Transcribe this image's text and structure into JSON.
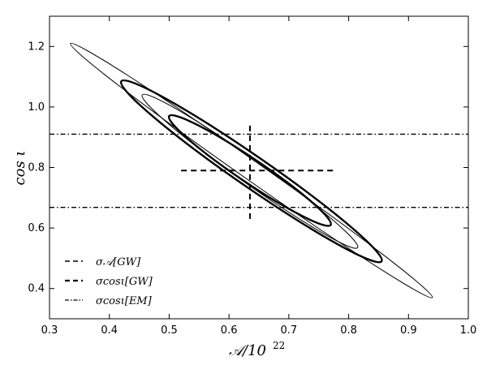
{
  "chart_data": {
    "type": "contour",
    "xlabel": "𝒜/10",
    "xlabel_exp": "22",
    "ylabel": "cos ι",
    "xlim": [
      0.3,
      1.0
    ],
    "ylim": [
      0.3,
      1.3
    ],
    "x_ticks": [
      "0.3",
      "0.4",
      "0.5",
      "0.6",
      "0.7",
      "0.8",
      "0.9",
      "1.0"
    ],
    "y_ticks": [
      "0.4",
      "0.6",
      "0.8",
      "1.0",
      "1.2"
    ],
    "center": [
      0.635,
      0.79
    ],
    "ellipses": [
      {
        "style": "thin",
        "tip_a": [
          0.335,
          1.21
        ],
        "tip_b": [
          0.94,
          0.37
        ],
        "half_width": 0.016
      },
      {
        "style": "thick",
        "tip_a": [
          0.42,
          1.085
        ],
        "tip_b": [
          0.855,
          0.49
        ],
        "half_width": 0.026
      },
      {
        "style": "thin",
        "tip_a": [
          0.455,
          1.04
        ],
        "tip_b": [
          0.815,
          0.535
        ],
        "half_width": 0.02
      },
      {
        "style": "thick",
        "tip_a": [
          0.5,
          0.97
        ],
        "tip_b": [
          0.77,
          0.61
        ],
        "half_width": 0.02
      }
    ],
    "sigma_A_gw": {
      "center": 0.635,
      "range": [
        0.52,
        0.775
      ]
    },
    "sigma_cos_gw": {
      "center": 0.79,
      "range": [
        0.63,
        0.95
      ]
    },
    "sigma_cos_em": [
      0.91,
      0.668
    ],
    "legend": {
      "position": "lower-left",
      "entries": [
        {
          "label": "σ𝒜[GW]",
          "style": "dashed"
        },
        {
          "label": "σcosι[GW]",
          "style": "dashed-thick"
        },
        {
          "label": "σcosι[EM]",
          "style": "dashdot"
        }
      ]
    }
  }
}
